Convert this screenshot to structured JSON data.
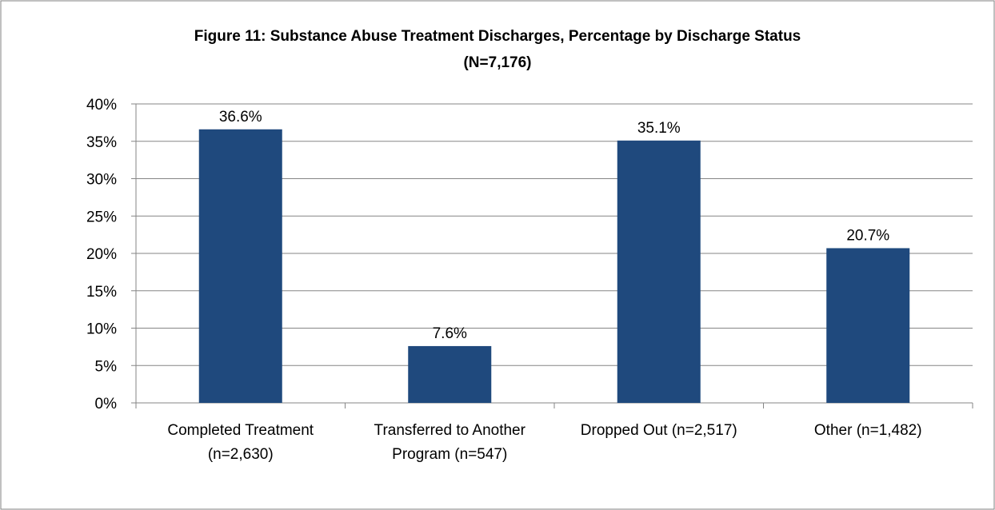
{
  "chart_data": {
    "type": "bar",
    "title": "Figure 11:  Substance Abuse Treatment Discharges, Percentage by Discharge Status",
    "subtitle": "(N=7,176)",
    "categories": [
      [
        "Completed Treatment",
        "(n=2,630)"
      ],
      [
        "Transferred to Another",
        "Program (n=547)"
      ],
      [
        "Dropped Out (n=2,517)"
      ],
      [
        "Other (n=1,482)"
      ]
    ],
    "values": [
      36.6,
      7.6,
      35.1,
      20.7
    ],
    "value_labels": [
      "36.6%",
      "7.6%",
      "35.1%",
      "20.7%"
    ],
    "ylim": [
      0,
      40
    ],
    "yticks": [
      0,
      5,
      10,
      15,
      20,
      25,
      30,
      35,
      40
    ],
    "ytick_labels": [
      "0%",
      "5%",
      "10%",
      "15%",
      "20%",
      "25%",
      "30%",
      "35%",
      "40%"
    ],
    "grid": true,
    "legend": "none",
    "bar_color": "#1F497D"
  }
}
